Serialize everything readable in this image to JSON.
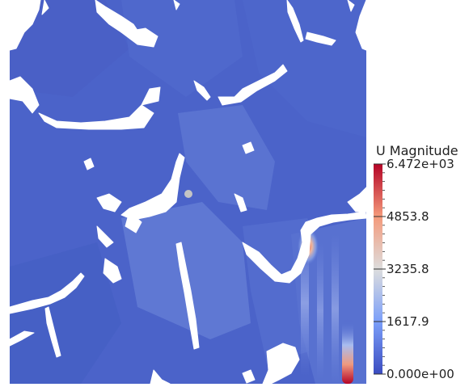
{
  "chart_data": {
    "type": "heatmap",
    "field": "U Magnitude",
    "colorbar": {
      "title": "U Magnitude",
      "range": [
        0,
        6472
      ],
      "tick_labels": [
        "6.472e+03",
        "4853.8",
        "3235.8",
        "1617.9",
        "0.000e+00"
      ],
      "tick_values": [
        6472,
        4853.8,
        3235.8,
        1617.9,
        0
      ],
      "colors": {
        "low": "#3b4cc0",
        "mid": "#dddddd",
        "high": "#b40426"
      }
    },
    "background_level": 350,
    "hotspots": [
      {
        "x": 0.655,
        "y": 0.64,
        "value": 5200
      },
      {
        "x": 0.74,
        "y": 0.96,
        "value": 6472
      }
    ]
  }
}
